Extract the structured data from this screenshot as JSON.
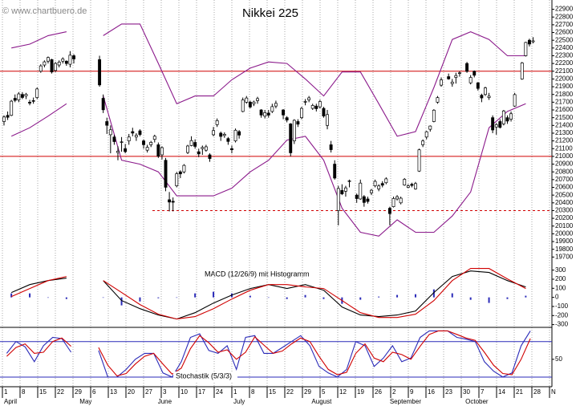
{
  "watermark": "© www.chartbuero.de",
  "chart_data": [
    {
      "type": "candlestick",
      "title": "Nikkei 225",
      "up_color": "#ffffff",
      "down_color": "#000000",
      "candles": [
        [
          21450,
          21530,
          21400,
          21509
        ],
        [
          21530,
          21580,
          21470,
          21505
        ],
        [
          21530,
          21730,
          21520,
          21713
        ],
        [
          21750,
          21800,
          21700,
          21724
        ],
        [
          21730,
          21830,
          21700,
          21807
        ],
        [
          21800,
          21830,
          21740,
          21761
        ],
        [
          21780,
          21820,
          21740,
          21802
        ],
        [
          21700,
          21730,
          21660,
          21688
        ],
        [
          21720,
          21760,
          21680,
          21711
        ],
        [
          21760,
          21890,
          21740,
          21871
        ],
        [
          22100,
          22190,
          22080,
          22169
        ],
        [
          22180,
          22240,
          22150,
          22221
        ],
        [
          22230,
          22290,
          22200,
          22277
        ],
        [
          22250,
          22260,
          22070,
          22090
        ],
        [
          22110,
          22220,
          22090,
          22200
        ],
        [
          22180,
          22240,
          22150,
          22218
        ],
        [
          22230,
          22280,
          22200,
          22259
        ],
        [
          22230,
          22240,
          22170,
          22200
        ],
        [
          22190,
          22360,
          22150,
          22307
        ],
        [
          22300,
          22320,
          22200,
          22258
        ],
        null,
        null,
        null,
        null,
        null,
        null,
        [
          22250,
          22300,
          21900,
          21923
        ],
        [
          21750,
          21800,
          21560,
          21602
        ],
        [
          21450,
          21500,
          21290,
          21402
        ],
        [
          21280,
          21400,
          21040,
          21344
        ],
        [
          21250,
          21280,
          21150,
          21191
        ],
        [
          21050,
          21130,
          20950,
          21067
        ],
        [
          21180,
          21250,
          21060,
          21188
        ],
        [
          21100,
          21160,
          21040,
          21062
        ],
        [
          21200,
          21290,
          21150,
          21250
        ],
        [
          21320,
          21370,
          21260,
          21301
        ],
        [
          21250,
          21300,
          21200,
          21272
        ],
        [
          21330,
          21350,
          21260,
          21283
        ],
        [
          21200,
          21220,
          21100,
          21151
        ],
        [
          21080,
          21150,
          21050,
          21117
        ],
        [
          21150,
          21200,
          21120,
          21182
        ],
        [
          21220,
          21280,
          21180,
          21260
        ],
        [
          21150,
          21180,
          20980,
          21003
        ],
        [
          21020,
          21130,
          20960,
          21113
        ],
        [
          20950,
          20980,
          20550,
          20601
        ],
        [
          20440,
          20540,
          20290,
          20410
        ],
        [
          20420,
          20470,
          20290,
          20408
        ],
        [
          20620,
          20800,
          20600,
          20776
        ],
        [
          20800,
          20820,
          20720,
          20774
        ],
        [
          20800,
          20900,
          20780,
          20884
        ],
        [
          21050,
          21150,
          21030,
          21134
        ],
        [
          21140,
          21260,
          21130,
          21204
        ],
        [
          21180,
          21220,
          21100,
          21129
        ],
        [
          21060,
          21100,
          20990,
          21032
        ],
        [
          21100,
          21140,
          21020,
          21116
        ],
        [
          21080,
          21150,
          21060,
          21124
        ],
        [
          21020,
          21040,
          20930,
          20972
        ],
        [
          21280,
          21380,
          21260,
          21333
        ],
        [
          21410,
          21490,
          21380,
          21462
        ],
        [
          21300,
          21320,
          21200,
          21258
        ],
        [
          21270,
          21310,
          21240,
          21285
        ],
        [
          21230,
          21250,
          21150,
          21193
        ],
        [
          21100,
          21140,
          21040,
          21086
        ],
        [
          21200,
          21360,
          21180,
          21338
        ],
        [
          21320,
          21340,
          21230,
          21275
        ],
        [
          21580,
          21760,
          21570,
          21729
        ],
        [
          21700,
          21780,
          21680,
          21754
        ],
        [
          21700,
          21720,
          21620,
          21638
        ],
        [
          21680,
          21720,
          21650,
          21702
        ],
        [
          21720,
          21770,
          21680,
          21746
        ],
        [
          21600,
          21610,
          21500,
          21534
        ],
        [
          21520,
          21600,
          21490,
          21565
        ],
        [
          21560,
          21600,
          21500,
          21533
        ],
        [
          21580,
          21680,
          21560,
          21643
        ],
        [
          21650,
          21720,
          21620,
          21685
        ],
        null,
        [
          21600,
          21610,
          21480,
          21535
        ],
        [
          21500,
          21520,
          21440,
          21469
        ],
        [
          21420,
          21430,
          21000,
          21046
        ],
        [
          21200,
          21480,
          21160,
          21466
        ],
        [
          21450,
          21480,
          21380,
          21416
        ],
        [
          21500,
          21640,
          21480,
          21620
        ],
        [
          21700,
          21740,
          21660,
          21709
        ],
        [
          21730,
          21780,
          21700,
          21756
        ],
        [
          21620,
          21680,
          21600,
          21658
        ],
        [
          21650,
          21680,
          21580,
          21616
        ],
        [
          21640,
          21730,
          21620,
          21709
        ],
        [
          21620,
          21640,
          21500,
          21521
        ],
        [
          21400,
          21600,
          21350,
          21540
        ],
        [
          21150,
          21200,
          21050,
          21087
        ],
        [
          20900,
          20950,
          20700,
          20720
        ],
        [
          20300,
          20620,
          20110,
          20585
        ],
        [
          20560,
          20640,
          20500,
          20516
        ],
        [
          20550,
          20620,
          20480,
          20593
        ],
        [
          20680,
          20700,
          20600,
          20684
        ],
        null,
        [
          20500,
          20520,
          20400,
          20455
        ],
        [
          20450,
          20700,
          20440,
          20655
        ],
        [
          20480,
          20500,
          20350,
          20405
        ],
        [
          20450,
          20480,
          20390,
          20418
        ],
        [
          20530,
          20580,
          20500,
          20563
        ],
        [
          20620,
          20700,
          20600,
          20677
        ],
        [
          20580,
          20640,
          20550,
          20618
        ],
        [
          20650,
          20680,
          20600,
          20628
        ],
        [
          20660,
          20730,
          20640,
          20710
        ],
        [
          20330,
          20350,
          20110,
          20261
        ],
        [
          20350,
          20480,
          20340,
          20456
        ],
        [
          20450,
          20500,
          20430,
          20479
        ],
        [
          20400,
          20480,
          20380,
          20460
        ],
        [
          20630,
          20720,
          20620,
          20704
        ],
        [
          20600,
          20640,
          20590,
          20620
        ],
        [
          20640,
          20660,
          20600,
          20625
        ],
        [
          20580,
          20670,
          20570,
          20649
        ],
        [
          20810,
          21100,
          20800,
          21085
        ],
        [
          21150,
          21220,
          21120,
          21199
        ],
        [
          21250,
          21330,
          21220,
          21318
        ],
        [
          21350,
          21400,
          21320,
          21392
        ],
        [
          21450,
          21610,
          21440,
          21597
        ],
        [
          21700,
          21780,
          21680,
          21759
        ],
        [
          21920,
          22020,
          21900,
          21988
        ],
        null,
        [
          22030,
          22070,
          21990,
          22001
        ],
        [
          21940,
          22000,
          21900,
          21960
        ],
        [
          22020,
          22080,
          21940,
          22044
        ],
        [
          22070,
          22100,
          22030,
          22079
        ],
        null,
        [
          22200,
          22220,
          22080,
          22098
        ],
        [
          21950,
          22050,
          21930,
          22020
        ],
        [
          22100,
          22110,
          22020,
          22048
        ],
        [
          21950,
          21960,
          21850,
          21878
        ],
        [
          21790,
          21810,
          21700,
          21755
        ],
        [
          21800,
          21900,
          21780,
          21885
        ],
        [
          21760,
          21820,
          21730,
          21778
        ],
        [
          21500,
          21530,
          21300,
          21341
        ],
        [
          21380,
          21430,
          21280,
          21410
        ],
        [
          21450,
          21480,
          21360,
          21375
        ],
        [
          21420,
          21600,
          21400,
          21587
        ],
        [
          21500,
          21530,
          21420,
          21456
        ],
        [
          21480,
          21580,
          21450,
          21551
        ],
        [
          21650,
          21820,
          21640,
          21798
        ],
        null,
        [
          22000,
          22220,
          21990,
          22207
        ],
        [
          22300,
          22480,
          22290,
          22472
        ],
        [
          22500,
          22520,
          22420,
          22451
        ],
        [
          22480,
          22540,
          22460,
          22492
        ]
      ],
      "series": [
        {
          "color": "#8b1a8b",
          "values": [
            22400,
            22450,
            22560,
            22610,
            null,
            22560,
            22710,
            22710,
            22200,
            21680,
            21780,
            21780,
            21990,
            22140,
            22220,
            22200,
            22000,
            21780,
            22090,
            22090,
            21680,
            21260,
            21320,
            21890,
            22510,
            22610,
            22510,
            22300,
            22300
          ]
        },
        {
          "color": "#8b1a8b",
          "values": [
            21260,
            21370,
            21520,
            21680,
            null,
            21780,
            20950,
            20900,
            20800,
            20490,
            20490,
            20490,
            20590,
            20800,
            20950,
            21210,
            21260,
            20950,
            20330,
            20020,
            19970,
            20180,
            20020,
            20020,
            20230,
            20540,
            21370,
            21580,
            21680
          ]
        }
      ],
      "hlines": [
        {
          "value": 22100,
          "color": "#d00000",
          "dashed": false
        },
        {
          "value": 21000,
          "color": "#d00000",
          "dashed": false
        },
        {
          "value": 20300,
          "color": "#d00000",
          "dashed": true
        }
      ],
      "ylim": [
        19600,
        23020
      ],
      "yticks": [
        19700,
        19800,
        19900,
        20000,
        20100,
        20200,
        20300,
        20400,
        20500,
        20600,
        20700,
        20800,
        20900,
        21000,
        21100,
        21200,
        21300,
        21400,
        21500,
        21600,
        21700,
        21800,
        21900,
        22000,
        22100,
        22200,
        22300,
        22400,
        22500,
        22600,
        22700,
        22800,
        22900
      ]
    },
    {
      "type": "macd",
      "title": "MACD (12/26/9) mit Histogramm",
      "series": [
        {
          "color": "#000000",
          "values": [
            53,
            141,
            185,
            212,
            null,
            185,
            -35,
            -124,
            -194,
            -238,
            -168,
            -62,
            26,
            97,
            141,
            97,
            141,
            79,
            -106,
            -194,
            -212,
            -194,
            -150,
            53,
            230,
            291,
            274,
            185,
            115
          ]
        },
        {
          "color": "#d00000",
          "values": [
            9,
            97,
            185,
            230,
            null,
            185,
            53,
            -79,
            -185,
            -238,
            -212,
            -124,
            -18,
            79,
            141,
            141,
            115,
            97,
            -35,
            -168,
            -221,
            -221,
            -185,
            -35,
            185,
            318,
            318,
            203,
            97
          ]
        }
      ],
      "histogram": {
        "color": "#2a2ab8",
        "values": [
          44,
          44,
          0,
          -18,
          null,
          0,
          -88,
          -45,
          -9,
          0,
          44,
          62,
          44,
          18,
          0,
          -18,
          26,
          -18,
          -71,
          -26,
          9,
          27,
          35,
          88,
          45,
          -27,
          -61,
          -18,
          18
        ]
      },
      "ylim": [
        -330,
        350
      ],
      "yticks": [
        300,
        200,
        100,
        0,
        -100,
        -200,
        -300
      ]
    },
    {
      "type": "stochastic",
      "title": "Stochastik (5/3/3)",
      "series": [
        {
          "color": "#2a2ab8",
          "values": [
            60,
            80,
            71,
            46,
            73,
            87,
            85,
            62,
            null,
            null,
            65,
            20,
            20,
            33,
            50,
            60,
            60,
            27,
            20,
            46,
            87,
            93,
            65,
            60,
            73,
            33,
            87,
            90,
            60,
            60,
            70,
            80,
            90,
            73,
            38,
            27,
            20,
            33,
            80,
            73,
            38,
            52,
            73,
            46,
            52,
            87,
            98,
            98,
            98,
            87,
            84,
            80,
            46,
            30,
            20,
            27,
            73,
            98
          ]
        },
        {
          "color": "#d00000",
          "values": [
            55,
            70,
            76,
            60,
            62,
            80,
            86,
            72,
            null,
            null,
            70,
            40,
            22,
            26,
            42,
            55,
            60,
            42,
            25,
            35,
            68,
            90,
            78,
            62,
            66,
            50,
            62,
            88,
            74,
            60,
            64,
            76,
            86,
            80,
            55,
            33,
            24,
            28,
            60,
            76,
            52,
            46,
            62,
            58,
            50,
            72,
            92,
            98,
            98,
            92,
            86,
            82,
            62,
            40,
            26,
            24,
            50,
            85
          ]
        }
      ],
      "levels": [
        20,
        80
      ],
      "level_color": "#2a2ab8",
      "ylim": [
        5,
        104
      ],
      "yticks": [
        50
      ],
      "x_tick_labels": [
        "1",
        "8",
        "15",
        "22",
        "29",
        "6",
        "13",
        "20",
        "27",
        "3",
        "10",
        "17",
        "24",
        "1",
        "8",
        "15",
        "22",
        "29",
        "5",
        "12",
        "19",
        "26",
        "2",
        "9",
        "16",
        "23",
        "30",
        "7",
        "14",
        "21",
        "28",
        "N"
      ],
      "months": [
        "April",
        "May",
        "June",
        "July",
        "August",
        "September",
        "October"
      ]
    }
  ]
}
